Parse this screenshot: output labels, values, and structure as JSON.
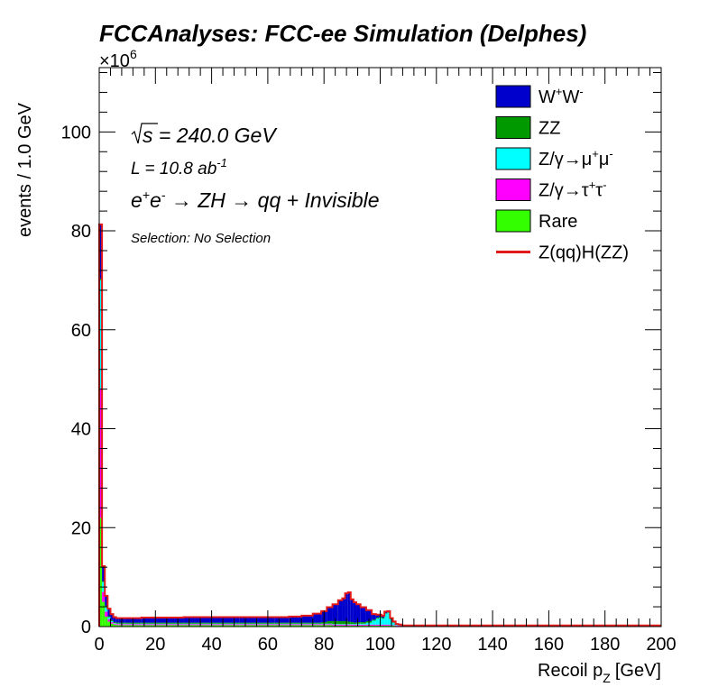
{
  "chart_data": {
    "type": "histogram-stacked",
    "title": "FCCAnalyses: FCC-ee Simulation (Delphes)",
    "xlabel": "Recoil p",
    "xlabel_sub": "Z",
    "xlabel_unit": "[GeV]",
    "ylabel": "events / 1.0 GeV",
    "y_exponent_base": "×10",
    "y_exponent_power": "6",
    "xlim": [
      0,
      200
    ],
    "ylim": [
      0,
      113
    ],
    "xticks": [
      "0",
      "20",
      "40",
      "60",
      "80",
      "100",
      "120",
      "140",
      "160",
      "180",
      "200"
    ],
    "yticks": [
      "0",
      "20",
      "40",
      "60",
      "80",
      "100"
    ],
    "annotations": {
      "sqrt_s": "s = 240.0 GeV",
      "lumi": "L = 10.8 ab",
      "lumi_exp": "-1",
      "process_parts": [
        "e",
        "+",
        "e",
        "-",
        " → ZH → qq + Invisible"
      ],
      "selection": "Selection: No Selection"
    },
    "x": [
      0.5,
      1.5,
      2.5,
      3.5,
      4.5,
      5.5,
      6.5,
      7.5,
      8.5,
      10,
      20,
      40,
      60,
      65,
      70,
      74,
      78,
      80,
      82,
      84,
      86,
      87,
      88,
      89,
      90,
      91,
      92,
      94,
      96,
      98,
      99,
      100,
      101,
      102,
      103,
      104,
      105,
      106,
      107,
      108,
      110,
      150,
      200
    ],
    "series": [
      {
        "name": "Rare",
        "color": "#33ff00",
        "values": [
          22,
          5,
          2,
          1,
          0.6,
          0.4,
          0.3,
          0.3,
          0.3,
          0.3,
          0.3,
          0.3,
          0.3,
          0.3,
          0.3,
          0.3,
          0.3,
          0.3,
          0.3,
          0.2,
          0.2,
          0.2,
          0.2,
          0.2,
          0.2,
          0.2,
          0.2,
          0.2,
          0.2,
          0.2,
          0.2,
          0.2,
          0.2,
          0.2,
          0.2,
          0.2,
          0.2,
          0.1,
          0.1,
          0.1,
          0.1,
          0.1,
          0.1
        ]
      },
      {
        "name": "Z/γ→τ+τ-",
        "color": "#ff00ff",
        "values": [
          26,
          2,
          1,
          0.5,
          0.3,
          0.2,
          0.2,
          0.2,
          0.2,
          0.2,
          0.2,
          0.2,
          0.2,
          0.2,
          0.2,
          0.2,
          0.2,
          0.2,
          0.2,
          0.2,
          0.2,
          0.2,
          0.2,
          0.2,
          0.2,
          0.2,
          0.2,
          0.2,
          0.2,
          0.2,
          0.2,
          0.2,
          0.2,
          0.2,
          0.2,
          0.1,
          0.1,
          0.1,
          0.1,
          0.1,
          0.1,
          0.1,
          0.1
        ]
      },
      {
        "name": "Z/γ→μ+μ-",
        "color": "#00ffff",
        "values": [
          22,
          2,
          1,
          0.4,
          0.2,
          0.1,
          0.1,
          0.1,
          0.1,
          0.1,
          0.1,
          0.1,
          0.1,
          0.1,
          0.1,
          0.1,
          0.1,
          0.1,
          0.1,
          0.1,
          0.1,
          0.1,
          0.1,
          0.1,
          0.1,
          0.1,
          0.2,
          0.2,
          0.4,
          0.8,
          1.2,
          1.4,
          1.2,
          2.2,
          2.4,
          1.2,
          0.5,
          0.2,
          0.1,
          0.0,
          0.0,
          0.0,
          0.0
        ]
      },
      {
        "name": "ZZ",
        "color": "#009900",
        "values": [
          0.3,
          0.2,
          0.2,
          0.2,
          0.2,
          0.2,
          0.2,
          0.2,
          0.2,
          0.2,
          0.2,
          0.2,
          0.2,
          0.2,
          0.2,
          0.2,
          0.2,
          0.3,
          0.5,
          0.6,
          0.6,
          0.6,
          0.6,
          0.5,
          0.4,
          0.3,
          0.3,
          0.3,
          0.3,
          0.2,
          0.2,
          0.2,
          0.2,
          0.1,
          0.1,
          0.1,
          0.1,
          0.1,
          0.1,
          0.0,
          0.0,
          0.0,
          0.0
        ]
      },
      {
        "name": "W+W-",
        "color": "#0000cc",
        "values": [
          11,
          3,
          2,
          1.5,
          1.2,
          1.0,
          0.9,
          0.9,
          0.9,
          0.9,
          1.0,
          1.1,
          1.1,
          1.1,
          1.2,
          1.4,
          1.8,
          2.2,
          2.8,
          3.4,
          4.2,
          4.6,
          5.6,
          5.9,
          4.6,
          4.1,
          3.6,
          3.0,
          2.2,
          1.1,
          0.6,
          0.4,
          0.4,
          0.3,
          0.2,
          0.1,
          0.1,
          0.0,
          0.0,
          0.0,
          0.0,
          0.0,
          0.0
        ]
      }
    ],
    "signal": {
      "name": "Z(qq)H(ZZ)",
      "color": "#e31a1a",
      "values": [
        0.02,
        0.02,
        0.02,
        0.02,
        0.02,
        0.02,
        0.02,
        0.02,
        0.02,
        0.02,
        0.02,
        0.02,
        0.02,
        0.02,
        0.02,
        0.02,
        0.02,
        0.02,
        0.02,
        0.02,
        0.02,
        0.02,
        0.02,
        0.02,
        0.02,
        0.02,
        0.02,
        0.02,
        0.02,
        0.02,
        0.02,
        0.02,
        0.02,
        0.02,
        0.02,
        0.02,
        0.02,
        0.02,
        0.02,
        0.02,
        0.02,
        0.02,
        0.02
      ]
    },
    "legend": [
      {
        "label": "W",
        "sup1": "+",
        "label2": "W",
        "sup2": "-",
        "color": "#0000cc",
        "kind": "box"
      },
      {
        "label": "ZZ",
        "color": "#009900",
        "kind": "box"
      },
      {
        "label": "Z/γ→μ",
        "sup1": "+",
        "label2": "μ",
        "sup2": "-",
        "color": "#00ffff",
        "kind": "box"
      },
      {
        "label": "Z/γ→τ",
        "sup1": "+",
        "label2": "τ",
        "sup2": "-",
        "color": "#ff00ff",
        "kind": "box"
      },
      {
        "label": "Rare",
        "color": "#33ff00",
        "kind": "box"
      },
      {
        "label": "Z(qq)H(ZZ)",
        "color": "#e31a1a",
        "kind": "line"
      }
    ],
    "legend_position": "top-right",
    "grid": false
  }
}
